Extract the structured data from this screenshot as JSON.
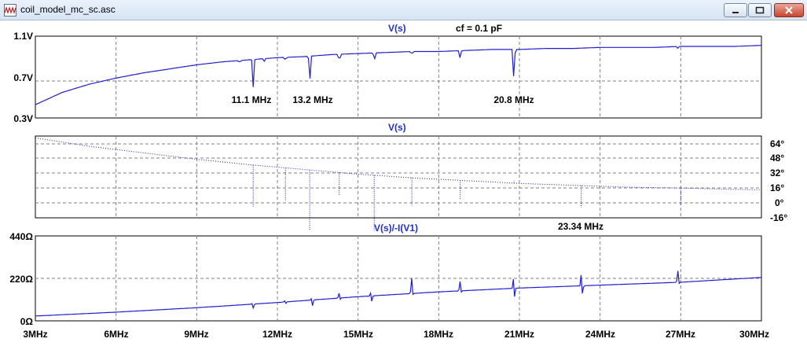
{
  "window": {
    "title": "coil_model_mc_sc.asc",
    "app_icon": "ltspice-waveform-icon",
    "buttons": [
      "minimize-icon",
      "restore-icon",
      "close-icon"
    ]
  },
  "colors": {
    "trace": "#1f1fd0",
    "title": "#1f2fd0",
    "grid": "#808080",
    "frame": "#000000"
  },
  "x_axis": {
    "ticks": [
      "3MHz",
      "6MHz",
      "9MHz",
      "12MHz",
      "15MHz",
      "18MHz",
      "21MHz",
      "24MHz",
      "27MHz",
      "30MHz"
    ],
    "range": [
      3,
      30
    ]
  },
  "panes": [
    {
      "title": "V(s)",
      "extra": "cf = 0.1 pF",
      "y_ticks": [
        "1.1V",
        "0.7V",
        "0.3V"
      ],
      "annotations": [
        "11.1 MHz",
        "13.2 MHz",
        "20.8 MHz"
      ]
    },
    {
      "title": "V(s)",
      "y_ticks": [
        "64°",
        "48°",
        "32°",
        "16°",
        "0°",
        "-16°"
      ]
    },
    {
      "title": "V(s)/-I(V1)",
      "extra": "23.34 MHz",
      "y_ticks": [
        "440Ω",
        "220Ω",
        "0Ω"
      ]
    }
  ],
  "chart_data": [
    {
      "type": "line",
      "title": "V(s)",
      "annotation": "cf = 0.1 pF",
      "ylim": [
        0.3,
        1.1
      ],
      "xlim": [
        3,
        30
      ],
      "series": [
        {
          "points": [
            [
              3,
              0.43
            ],
            [
              4,
              0.55
            ],
            [
              5,
              0.63
            ],
            [
              6,
              0.69
            ],
            [
              7,
              0.74
            ],
            [
              8,
              0.78
            ],
            [
              9,
              0.82
            ],
            [
              10,
              0.85
            ],
            [
              11,
              0.87
            ],
            [
              12,
              0.89
            ],
            [
              13,
              0.9
            ],
            [
              14,
              0.92
            ],
            [
              15,
              0.93
            ],
            [
              16,
              0.94
            ],
            [
              17,
              0.95
            ],
            [
              18,
              0.95
            ],
            [
              19,
              0.96
            ],
            [
              20,
              0.97
            ],
            [
              21,
              0.97
            ],
            [
              22,
              0.98
            ],
            [
              23,
              0.98
            ],
            [
              24,
              0.99
            ],
            [
              25,
              0.99
            ],
            [
              26,
              0.99
            ],
            [
              27,
              1.0
            ],
            [
              28,
              1.0
            ],
            [
              29,
              1.0
            ],
            [
              30,
              1.01
            ]
          ]
        }
      ],
      "dips": [
        [
          10.6,
          0.03
        ],
        [
          11.1,
          0.27
        ],
        [
          11.5,
          0.03
        ],
        [
          12.3,
          0.04
        ],
        [
          13.2,
          0.27
        ],
        [
          14.3,
          0.1
        ],
        [
          15.6,
          0.09
        ],
        [
          17.0,
          0.04
        ],
        [
          18.8,
          0.08
        ],
        [
          20.8,
          0.35
        ],
        [
          26.9,
          0.02
        ]
      ],
      "markers": [
        {
          "x": 11.1,
          "label": "11.1 MHz"
        },
        {
          "x": 13.2,
          "label": "13.2 MHz"
        },
        {
          "x": 20.8,
          "label": "20.8 MHz"
        }
      ]
    },
    {
      "type": "line",
      "title": "V(s)",
      "ylim": [
        -16,
        72
      ],
      "xlim": [
        3,
        30
      ],
      "series": [
        {
          "points": [
            [
              3,
              70
            ],
            [
              5,
              61
            ],
            [
              7,
              54
            ],
            [
              9,
              47
            ],
            [
              11,
              41
            ],
            [
              13,
              36
            ],
            [
              15,
              31
            ],
            [
              17,
              27
            ],
            [
              19,
              24
            ],
            [
              21,
              21
            ],
            [
              23,
              19
            ],
            [
              25,
              17
            ],
            [
              27,
              16
            ],
            [
              30,
              14
            ]
          ]
        }
      ],
      "spikes": [
        [
          11.1,
          -4
        ],
        [
          12.3,
          3
        ],
        [
          13.2,
          -30
        ],
        [
          14.3,
          8
        ],
        [
          15.6,
          -30
        ],
        [
          17.0,
          -3
        ],
        [
          18.8,
          4
        ],
        [
          20.8,
          24
        ],
        [
          23.3,
          -5
        ],
        [
          27.0,
          -2
        ]
      ]
    },
    {
      "type": "line",
      "title": "V(s)/-I(V1)",
      "annotation": "23.34 MHz",
      "ylim": [
        0,
        440
      ],
      "xlim": [
        3,
        30
      ],
      "series": [
        {
          "points": [
            [
              3,
              25
            ],
            [
              6,
              45
            ],
            [
              9,
              68
            ],
            [
              12,
              95
            ],
            [
              15,
              125
            ],
            [
              18,
              150
            ],
            [
              21,
              170
            ],
            [
              24,
              185
            ],
            [
              27,
              200
            ],
            [
              30,
              225
            ]
          ]
        }
      ],
      "spikes": [
        [
          11.1,
          15,
          -20
        ],
        [
          12.3,
          12,
          -10
        ],
        [
          13.3,
          25,
          -30
        ],
        [
          14.3,
          25,
          -25
        ],
        [
          15.5,
          40,
          -30
        ],
        [
          17.0,
          80,
          -20
        ],
        [
          18.8,
          50,
          -25
        ],
        [
          20.8,
          80,
          -60
        ],
        [
          23.34,
          300,
          -40
        ],
        [
          26.9,
          60,
          -20
        ]
      ]
    }
  ]
}
